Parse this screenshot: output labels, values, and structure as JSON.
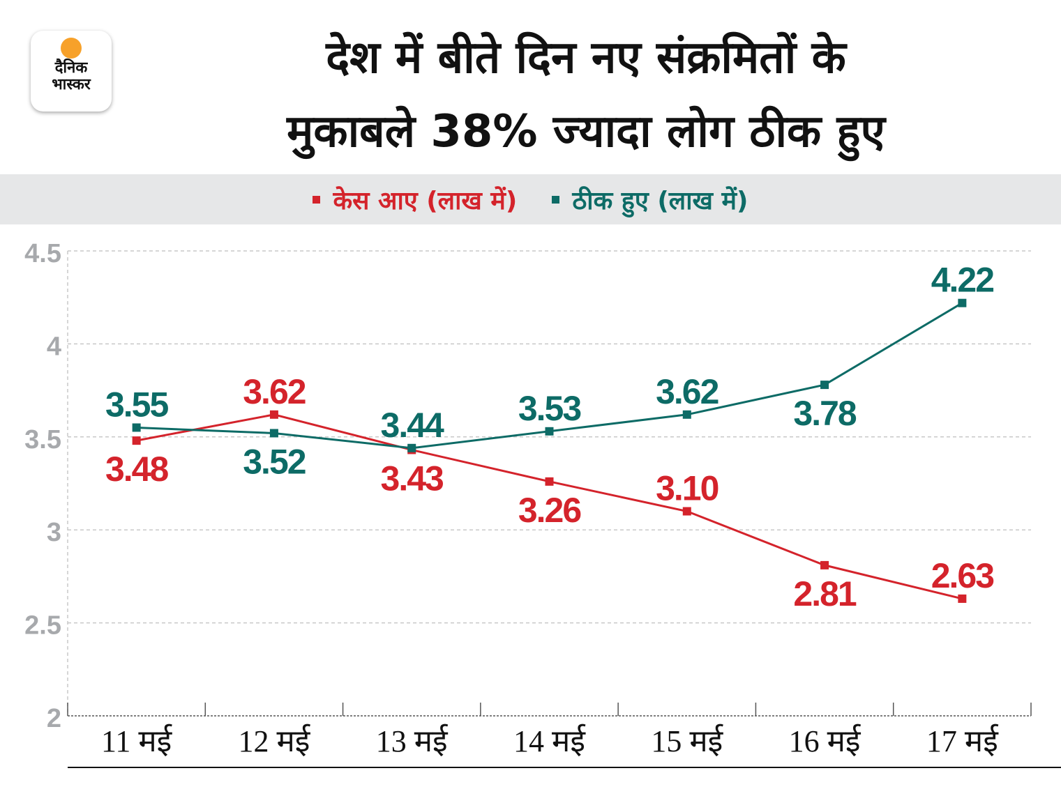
{
  "logo": {
    "text": "दैनिक भास्कर",
    "line1": "दैनिक",
    "line2": "भास्कर"
  },
  "title": {
    "line1": "देश में बीते दिन नए संक्रमितों के",
    "line2": "मुकाबले 38% ज्यादा लोग ठीक हुए"
  },
  "colors": {
    "cases": "#d4232b",
    "recovered": "#0d6b66",
    "axis": "#a7a9ac",
    "legend_bg": "#e6e7e8"
  },
  "chart_data": {
    "type": "line",
    "categories": [
      "11 मई",
      "12 मई",
      "13 मई",
      "14 मई",
      "15 मई",
      "16 मई",
      "17 मई"
    ],
    "series": [
      {
        "name": "केस आए (लाख में)",
        "values": [
          3.48,
          3.62,
          3.43,
          3.26,
          3.1,
          2.81,
          2.63
        ],
        "labels": [
          "3.48",
          "3.62",
          "3.43",
          "3.26",
          "3.10",
          "2.81",
          "2.63"
        ]
      },
      {
        "name": "ठीक हुए (लाख में)",
        "values": [
          3.55,
          3.52,
          3.44,
          3.53,
          3.62,
          3.78,
          4.22
        ],
        "labels": [
          "3.55",
          "3.52",
          "3.44",
          "3.53",
          "3.62",
          "3.78",
          "4.22"
        ]
      }
    ],
    "ylim": [
      2,
      4.5
    ],
    "yticks": [
      "2",
      "2.5",
      "3",
      "3.5",
      "4",
      "4.5"
    ],
    "grid": true,
    "legend": "top"
  }
}
